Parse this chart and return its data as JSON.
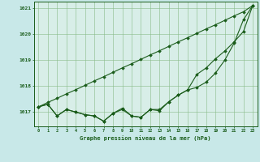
{
  "title": "Graphe pression niveau de la mer (hPa)",
  "background_color": "#c8e8e8",
  "plot_bg_color": "#d8eee8",
  "grid_color": "#88bb88",
  "line_color": "#1a5c1a",
  "marker_color": "#1a5c1a",
  "x_values": [
    0,
    1,
    2,
    3,
    4,
    5,
    6,
    7,
    8,
    9,
    10,
    11,
    12,
    13,
    14,
    15,
    16,
    17,
    18,
    19,
    20,
    21,
    22,
    23
  ],
  "series_straight": [
    1017.2,
    1017.37,
    1017.53,
    1017.7,
    1017.86,
    1018.03,
    1018.2,
    1018.36,
    1018.53,
    1018.7,
    1018.86,
    1019.03,
    1019.2,
    1019.36,
    1019.53,
    1019.7,
    1019.86,
    1020.03,
    1020.2,
    1020.36,
    1020.53,
    1020.7,
    1020.86,
    1021.1
  ],
  "series_mid": [
    1017.2,
    1017.3,
    1016.85,
    1017.1,
    1017.0,
    1016.9,
    1016.85,
    1016.65,
    1016.95,
    1017.1,
    1016.85,
    1016.8,
    1017.1,
    1017.1,
    1017.4,
    1017.65,
    1017.85,
    1018.45,
    1018.7,
    1019.05,
    1019.35,
    1019.7,
    1020.1,
    1021.1
  ],
  "series_wiggly": [
    1017.2,
    1017.3,
    1016.85,
    1017.1,
    1017.0,
    1016.9,
    1016.85,
    1016.65,
    1016.95,
    1017.15,
    1016.85,
    1016.8,
    1017.1,
    1017.05,
    1017.4,
    1017.65,
    1017.85,
    1017.95,
    1018.15,
    1018.5,
    1019.0,
    1019.65,
    1020.55,
    1021.1
  ],
  "ylim": [
    1016.45,
    1021.25
  ],
  "yticks": [
    1017,
    1018,
    1019,
    1020,
    1021
  ],
  "xlim": [
    -0.5,
    23.5
  ]
}
